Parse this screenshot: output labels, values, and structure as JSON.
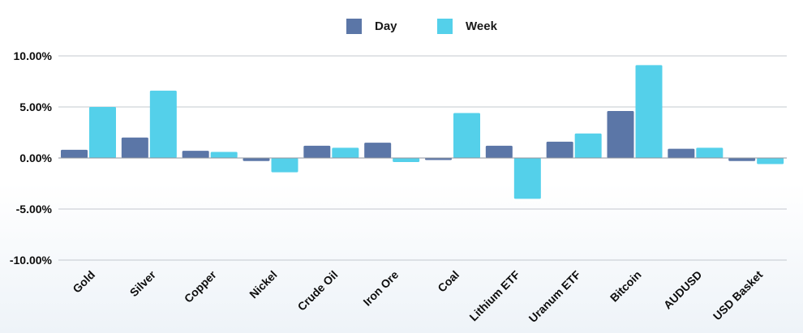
{
  "chart_data": {
    "type": "bar",
    "categories": [
      "Gold",
      "Silver",
      "Copper",
      "Nickel",
      "Crude Oil",
      "Iron Ore",
      "Coal",
      "Lithium ETF",
      "Uranum ETF",
      "Bitcoin",
      "AUDUSD",
      "USD Basket"
    ],
    "series": [
      {
        "name": "Day",
        "color": "#5b76a7",
        "values": [
          0.8,
          2.0,
          0.7,
          -0.3,
          1.2,
          1.5,
          -0.2,
          1.2,
          1.6,
          4.6,
          0.9,
          -0.3
        ]
      },
      {
        "name": "Week",
        "color": "#54d0ea",
        "values": [
          5.0,
          6.6,
          0.6,
          -1.4,
          1.0,
          -0.4,
          4.4,
          -4.0,
          2.4,
          9.1,
          1.0,
          -0.6
        ]
      }
    ],
    "ylim": [
      -10,
      10
    ],
    "yticks": [
      -10,
      -5,
      0,
      5,
      10
    ],
    "ytick_labels": [
      "-10.00%",
      "-5.00%",
      "0.00%",
      "5.00%",
      "10.00%"
    ],
    "grid": true,
    "legend_position": "top-center",
    "title": "",
    "xlabel": "",
    "ylabel": ""
  }
}
